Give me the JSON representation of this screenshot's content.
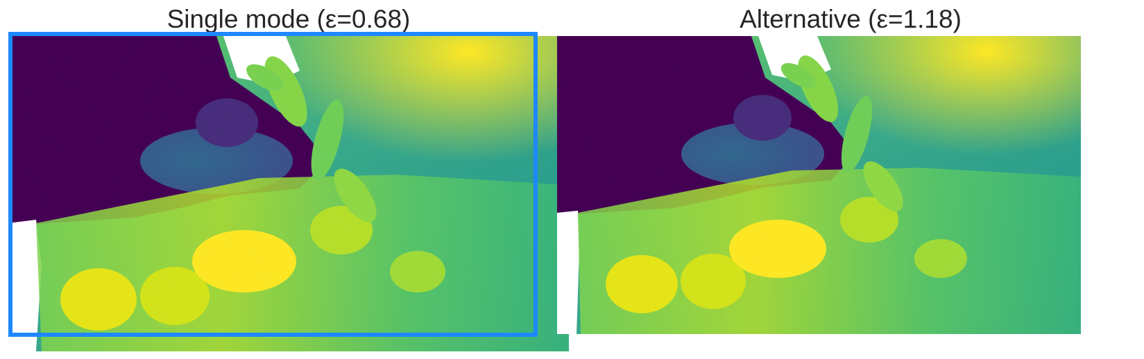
{
  "panels": [
    {
      "title": "Single mode (ε=0.68)",
      "selected": true
    },
    {
      "title": "Alternative (ε=1.18)",
      "selected": false
    }
  ],
  "colors": {
    "selection_frame": "#1e88ff",
    "colormap": [
      "#440154",
      "#3b528b",
      "#21918c",
      "#5ec962",
      "#fde725"
    ],
    "background": "#ffffff",
    "title_text": "#262626"
  }
}
